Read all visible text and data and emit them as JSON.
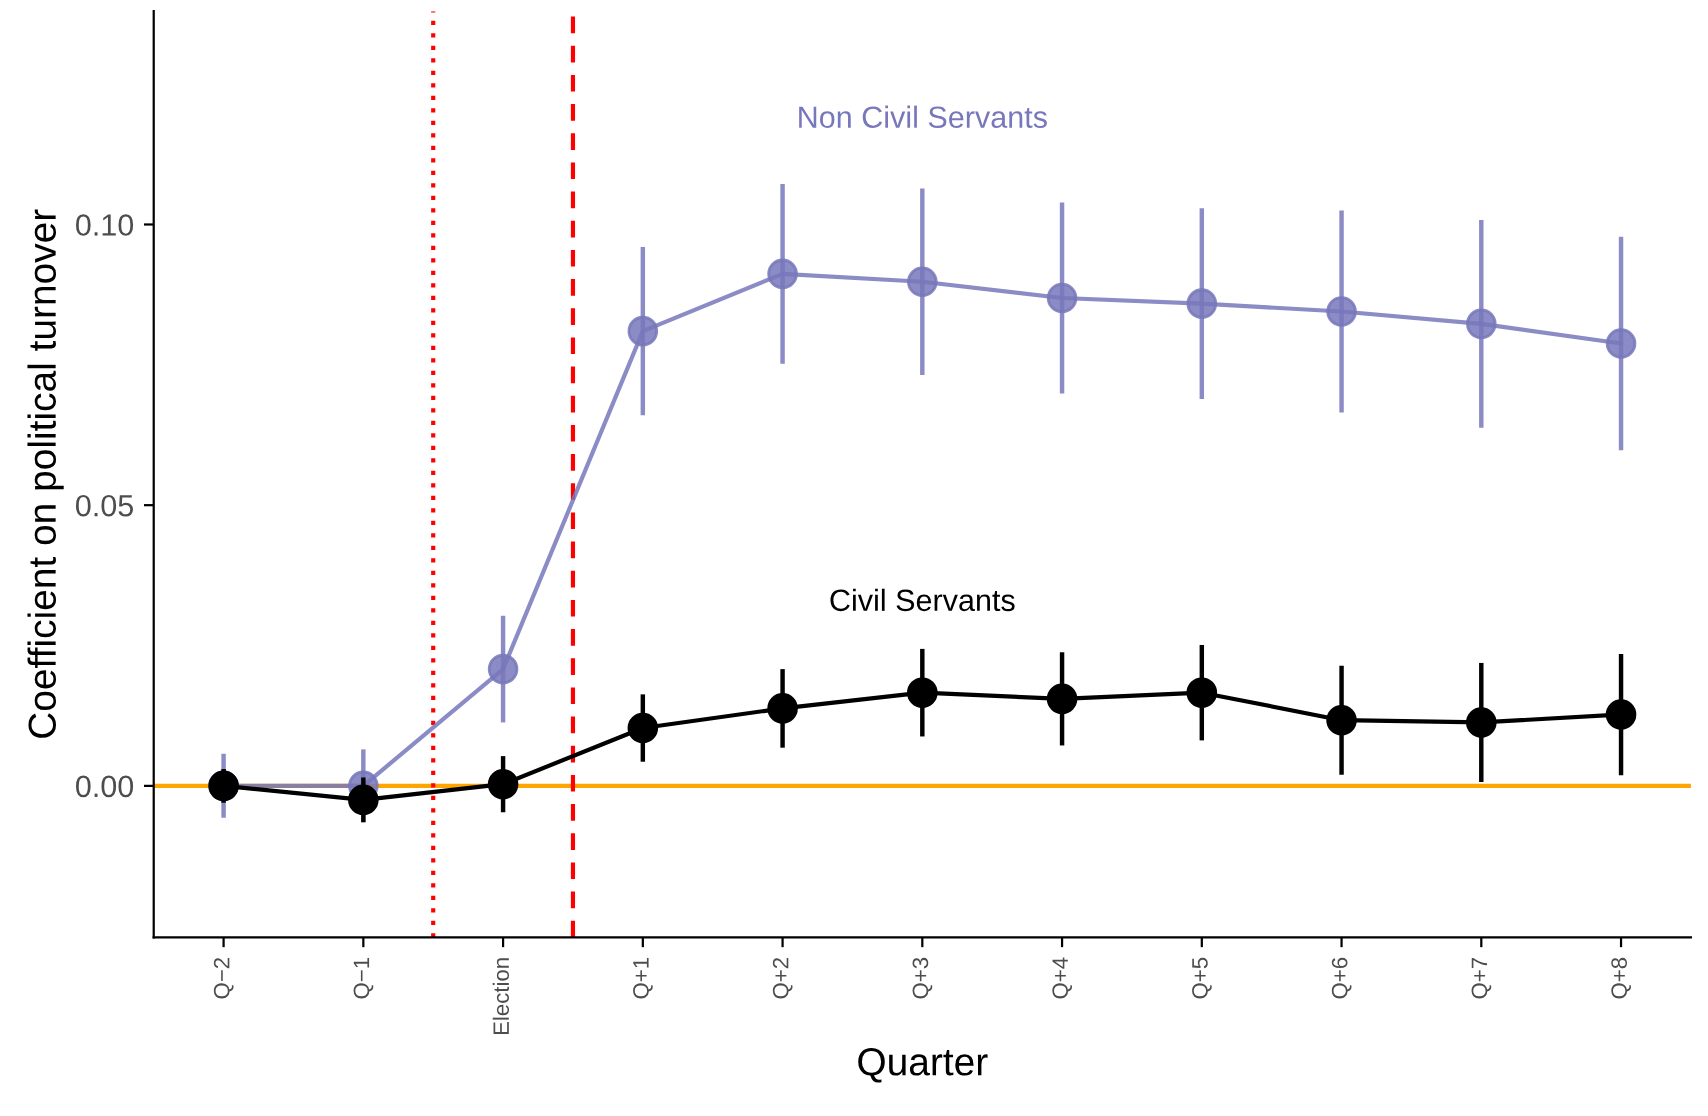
{
  "chart_data": {
    "type": "line",
    "xlabel": "Quarter",
    "ylabel": "Coefficient on political turnover",
    "categories": [
      "Q−2",
      "Q−1",
      "Election",
      "Q+1",
      "Q+2",
      "Q+3",
      "Q+4",
      "Q+5",
      "Q+6",
      "Q+7",
      "Q+8"
    ],
    "ylim": [
      -0.027,
      0.138
    ],
    "yticks": [
      {
        "value": 0,
        "label": "0.00"
      },
      {
        "value": 0.05,
        "label": "0.05"
      },
      {
        "value": 0.1,
        "label": "0.10"
      }
    ],
    "series": [
      {
        "name": "Non Civil Servants",
        "color": "#7777bb",
        "values": [
          0.0,
          0.0,
          0.0208,
          0.081,
          0.0912,
          0.0898,
          0.0869,
          0.0859,
          0.0845,
          0.0823,
          0.0788
        ],
        "errors": [
          0.0057,
          0.0065,
          0.0095,
          0.015,
          0.016,
          0.0166,
          0.017,
          0.017,
          0.018,
          0.0185,
          0.019
        ]
      },
      {
        "name": "Civil Servants",
        "color": "#000000",
        "values": [
          0.0,
          -0.0025,
          0.0003,
          0.0103,
          0.0138,
          0.0166,
          0.0155,
          0.0166,
          0.0117,
          0.0113,
          0.0127
        ],
        "errors": [
          0.003,
          0.004,
          0.005,
          0.006,
          0.007,
          0.0078,
          0.0083,
          0.0085,
          0.0097,
          0.0106,
          0.0108
        ]
      }
    ],
    "ref_lines": [
      {
        "axis": "y",
        "value": 0,
        "color": "#ffa500",
        "line_style": "solid"
      }
    ],
    "marker": "circle",
    "line_style": "solid",
    "grid": false,
    "legend": false
  }
}
